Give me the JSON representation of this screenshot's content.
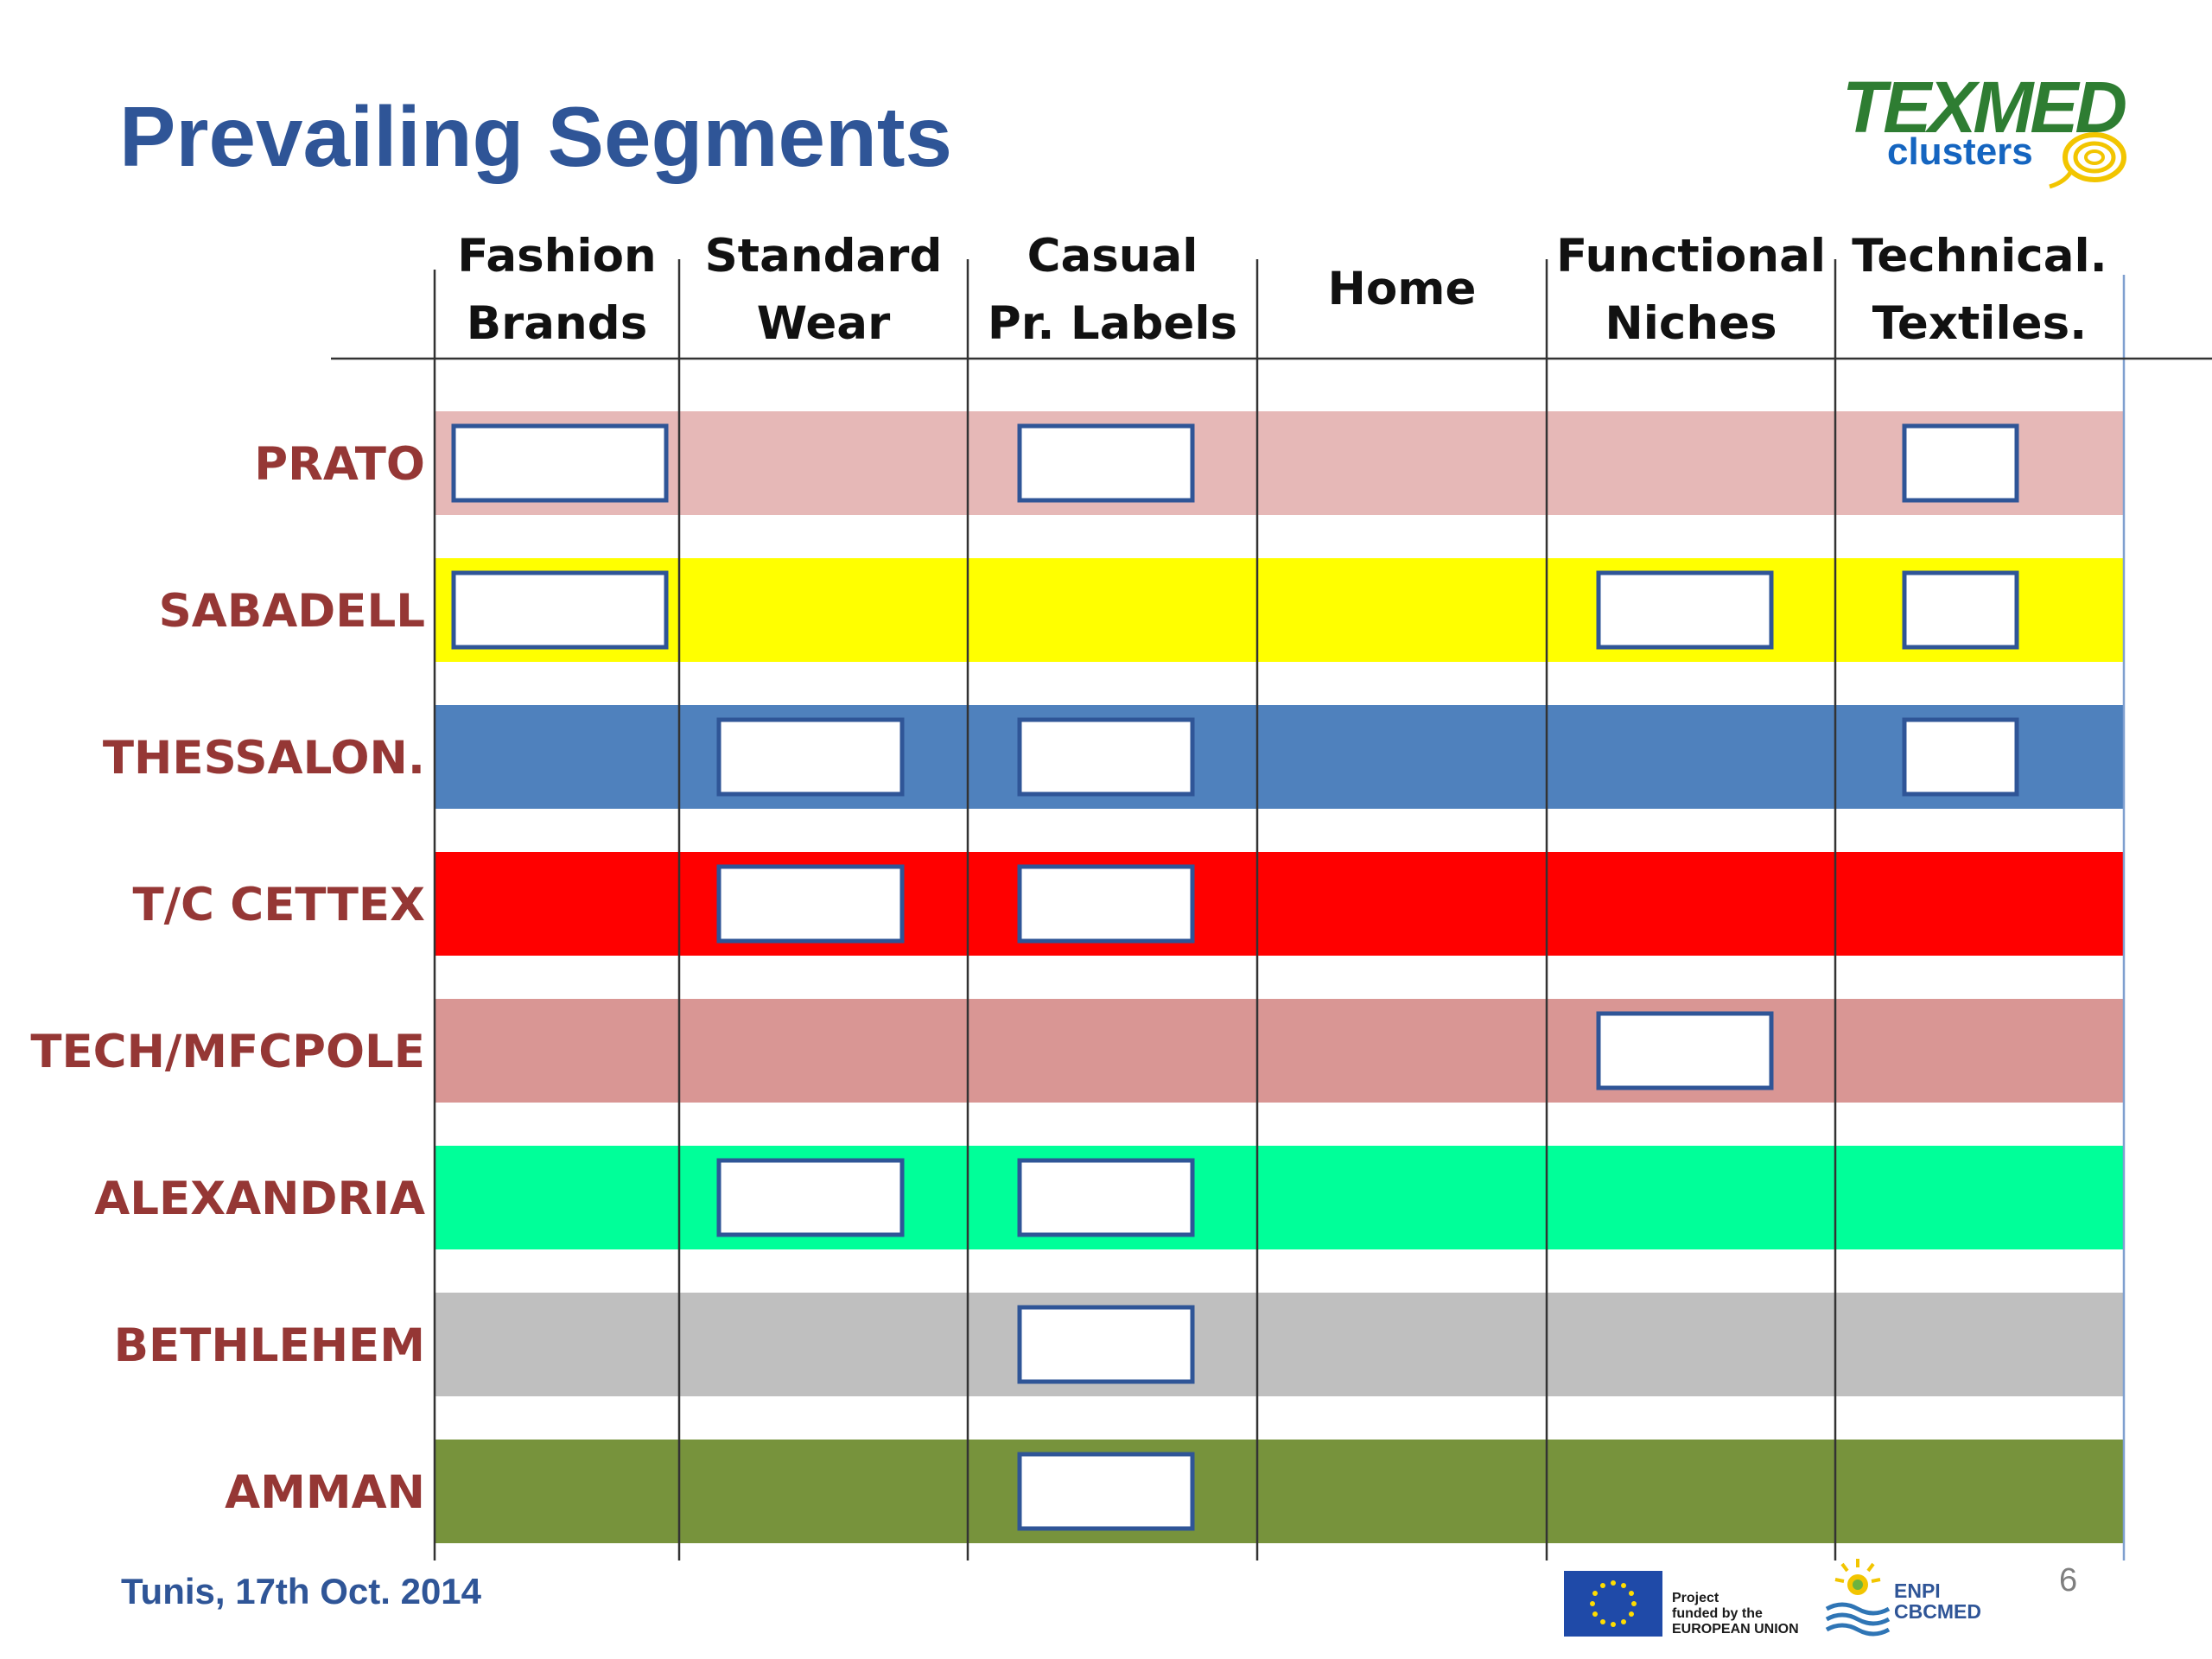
{
  "slide": {
    "title": "Prevailing Segments",
    "footer": "Tunis, 17th Oct. 2014",
    "page_number": "6"
  },
  "logo": {
    "word": "TEXMED",
    "sub": "clusters"
  },
  "funding": {
    "eu_line1": "Project",
    "eu_line2": "funded by the",
    "eu_line3": "EUROPEAN UNION",
    "enpi_line1": "ENPI",
    "enpi_line2": "CBCMED"
  },
  "diagram": {
    "columns": [
      {
        "line1": "Fashion",
        "line2": "Brands"
      },
      {
        "line1": "Standard",
        "line2": "Wear"
      },
      {
        "line1": "Casual",
        "line2": "Pr. Labels"
      },
      {
        "line1": "Home",
        "line2": ""
      },
      {
        "line1": "Functional",
        "line2": "Niches"
      },
      {
        "line1": "Technical.",
        "line2": "Textiles."
      }
    ],
    "rows": [
      {
        "label": "PRATO",
        "color": "#e6b8b7",
        "segments": [
          0,
          2,
          5
        ]
      },
      {
        "label": "SABADELL",
        "color": "#ffff00",
        "segments": [
          0,
          4,
          5
        ]
      },
      {
        "label": "THESSALON.",
        "color": "#4f81bd",
        "segments": [
          1,
          2,
          5
        ]
      },
      {
        "label": "T/C CETTEX",
        "color": "#ff0000",
        "segments": [
          1,
          2
        ]
      },
      {
        "label": "TECH/MFCPOLE",
        "color": "#d99694",
        "segments": [
          4
        ]
      },
      {
        "label": "ALEXANDRIA",
        "color": "#00ff99",
        "segments": [
          1,
          2
        ]
      },
      {
        "label": "BETHLEHEM",
        "color": "#bfbfbf",
        "segments": [
          2
        ]
      },
      {
        "label": "AMMAN",
        "color": "#77933c",
        "segments": [
          2
        ]
      }
    ],
    "marker_border_color": "#2f5597"
  }
}
